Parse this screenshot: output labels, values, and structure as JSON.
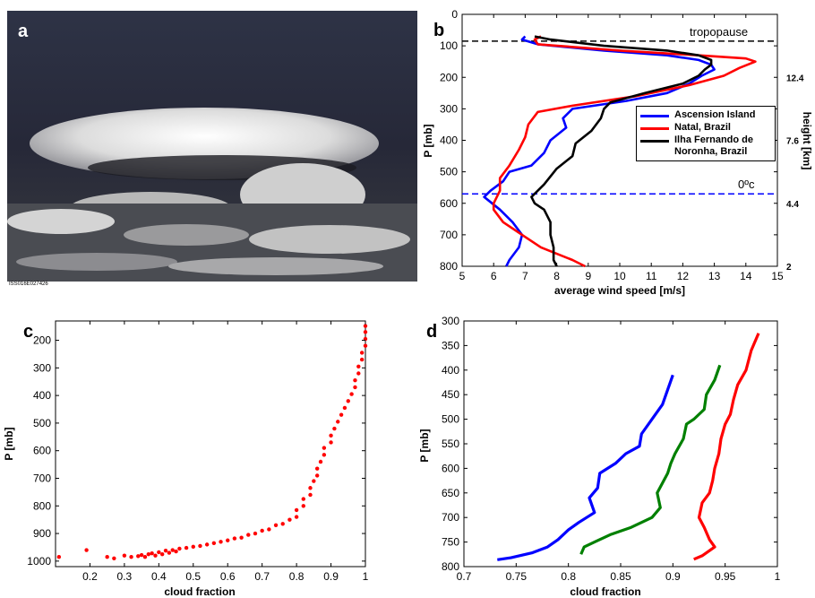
{
  "panels": {
    "a": {
      "letter": "a",
      "caption": "ISS016E027426"
    },
    "b": {
      "letter": "b"
    },
    "c": {
      "letter": "c"
    },
    "d": {
      "letter": "d"
    }
  },
  "annotations": {
    "tropopause": "tropopause",
    "freezing": "0ºc"
  },
  "colors": {
    "blue": "#0000ff",
    "red": "#ff0000",
    "black": "#000000",
    "green": "#008000"
  },
  "chart_data": [
    {
      "id": "b",
      "type": "line",
      "xlabel": "average wind speed [m/s]",
      "ylabel": "P [mb]",
      "y2label": "height [km]",
      "xlim": [
        5,
        15
      ],
      "ylim": [
        800,
        0
      ],
      "xticks": [
        5,
        6,
        7,
        8,
        9,
        10,
        11,
        12,
        13,
        14,
        15
      ],
      "yticks": [
        0,
        100,
        200,
        300,
        400,
        500,
        600,
        700,
        800
      ],
      "y2ticks": [
        {
          "label": "12.4",
          "p": 200
        },
        {
          "label": "7.6",
          "p": 400
        },
        {
          "label": "4.4",
          "p": 600
        },
        {
          "label": "2",
          "p": 800
        }
      ],
      "hlines": [
        {
          "p": 85,
          "color": "#000000",
          "label": "tropopause"
        },
        {
          "p": 570,
          "color": "#0000ff",
          "label": "0ºc"
        }
      ],
      "legend": "center-right",
      "series": [
        {
          "name": "Ascension Island",
          "color": "#0000ff",
          "points": [
            [
              7.0,
              70
            ],
            [
              6.9,
              80
            ],
            [
              7.4,
              95
            ],
            [
              9.5,
              115
            ],
            [
              11.5,
              130
            ],
            [
              12.5,
              145
            ],
            [
              12.9,
              160
            ],
            [
              13.0,
              175
            ],
            [
              12.6,
              195
            ],
            [
              12.2,
              220
            ],
            [
              11.5,
              250
            ],
            [
              10.2,
              275
            ],
            [
              8.5,
              300
            ],
            [
              8.2,
              330
            ],
            [
              8.3,
              360
            ],
            [
              7.8,
              400
            ],
            [
              7.6,
              440
            ],
            [
              7.2,
              480
            ],
            [
              6.5,
              500
            ],
            [
              6.3,
              530
            ],
            [
              5.9,
              560
            ],
            [
              5.7,
              580
            ],
            [
              6.2,
              620
            ],
            [
              6.6,
              660
            ],
            [
              6.9,
              700
            ],
            [
              6.8,
              740
            ],
            [
              6.5,
              780
            ],
            [
              6.4,
              800
            ]
          ]
        },
        {
          "name": "Natal, Brazil",
          "color": "#ff0000",
          "points": [
            [
              7.5,
              70
            ],
            [
              7.3,
              80
            ],
            [
              7.4,
              95
            ],
            [
              10.0,
              115
            ],
            [
              12.5,
              130
            ],
            [
              14.0,
              140
            ],
            [
              14.3,
              150
            ],
            [
              13.8,
              170
            ],
            [
              13.3,
              195
            ],
            [
              12.2,
              225
            ],
            [
              10.5,
              260
            ],
            [
              8.5,
              290
            ],
            [
              7.4,
              310
            ],
            [
              7.1,
              350
            ],
            [
              7.0,
              390
            ],
            [
              6.8,
              430
            ],
            [
              6.5,
              480
            ],
            [
              6.2,
              520
            ],
            [
              6.2,
              560
            ],
            [
              6.0,
              600
            ],
            [
              6.0,
              620
            ],
            [
              6.3,
              660
            ],
            [
              6.9,
              700
            ],
            [
              7.5,
              740
            ],
            [
              8.5,
              780
            ],
            [
              8.9,
              800
            ]
          ]
        },
        {
          "name": "Ilha Fernando de Noronha, Brazil",
          "color": "#000000",
          "points": [
            [
              7.3,
              70
            ],
            [
              7.8,
              80
            ],
            [
              9.5,
              100
            ],
            [
              11.5,
              115
            ],
            [
              12.5,
              130
            ],
            [
              12.9,
              145
            ],
            [
              12.9,
              160
            ],
            [
              12.7,
              175
            ],
            [
              12.5,
              195
            ],
            [
              12.0,
              220
            ],
            [
              10.8,
              250
            ],
            [
              9.7,
              280
            ],
            [
              9.5,
              300
            ],
            [
              9.4,
              330
            ],
            [
              9.1,
              370
            ],
            [
              8.6,
              410
            ],
            [
              8.5,
              450
            ],
            [
              8.0,
              490
            ],
            [
              7.6,
              540
            ],
            [
              7.2,
              580
            ],
            [
              7.3,
              600
            ],
            [
              7.6,
              620
            ],
            [
              7.8,
              660
            ],
            [
              7.8,
              700
            ],
            [
              7.9,
              740
            ],
            [
              7.9,
              780
            ],
            [
              8.0,
              800
            ]
          ]
        }
      ]
    },
    {
      "id": "c",
      "type": "scatter",
      "xlabel": "cloud fraction",
      "ylabel": "P [mb]",
      "xlim": [
        0.1,
        1.0
      ],
      "ylim": [
        1020,
        130
      ],
      "xticks": [
        0.2,
        0.3,
        0.4,
        0.5,
        0.6,
        0.7,
        0.8,
        0.9,
        1
      ],
      "yticks": [
        200,
        300,
        400,
        500,
        600,
        700,
        800,
        900,
        1000
      ],
      "color": "#ff0000",
      "series": [
        {
          "name": "",
          "color": "#ff0000",
          "points": [
            [
              0.11,
              985
            ],
            [
              0.19,
              960
            ],
            [
              0.25,
              985
            ],
            [
              0.27,
              990
            ],
            [
              0.3,
              980
            ],
            [
              0.32,
              985
            ],
            [
              0.34,
              982
            ],
            [
              0.35,
              978
            ],
            [
              0.36,
              985
            ],
            [
              0.37,
              975
            ],
            [
              0.38,
              972
            ],
            [
              0.39,
              980
            ],
            [
              0.4,
              968
            ],
            [
              0.41,
              975
            ],
            [
              0.42,
              962
            ],
            [
              0.43,
              970
            ],
            [
              0.44,
              960
            ],
            [
              0.45,
              965
            ],
            [
              0.46,
              955
            ],
            [
              0.48,
              952
            ],
            [
              0.5,
              948
            ],
            [
              0.52,
              945
            ],
            [
              0.54,
              940
            ],
            [
              0.56,
              935
            ],
            [
              0.58,
              930
            ],
            [
              0.6,
              925
            ],
            [
              0.62,
              918
            ],
            [
              0.64,
              915
            ],
            [
              0.66,
              905
            ],
            [
              0.68,
              900
            ],
            [
              0.7,
              890
            ],
            [
              0.72,
              885
            ],
            [
              0.74,
              870
            ],
            [
              0.76,
              865
            ],
            [
              0.78,
              850
            ],
            [
              0.8,
              840
            ],
            [
              0.8,
              815
            ],
            [
              0.82,
              800
            ],
            [
              0.82,
              775
            ],
            [
              0.84,
              760
            ],
            [
              0.84,
              735
            ],
            [
              0.85,
              710
            ],
            [
              0.86,
              690
            ],
            [
              0.86,
              665
            ],
            [
              0.87,
              640
            ],
            [
              0.88,
              615
            ],
            [
              0.88,
              590
            ],
            [
              0.9,
              570
            ],
            [
              0.9,
              545
            ],
            [
              0.91,
              520
            ],
            [
              0.92,
              495
            ],
            [
              0.93,
              470
            ],
            [
              0.94,
              445
            ],
            [
              0.95,
              420
            ],
            [
              0.96,
              395
            ],
            [
              0.97,
              370
            ],
            [
              0.97,
              345
            ],
            [
              0.98,
              320
            ],
            [
              0.98,
              295
            ],
            [
              0.99,
              270
            ],
            [
              0.99,
              245
            ],
            [
              1.0,
              220
            ],
            [
              1.0,
              195
            ],
            [
              1.0,
              170
            ],
            [
              1.0,
              148
            ]
          ]
        }
      ]
    },
    {
      "id": "d",
      "type": "line",
      "xlabel": "cloud fraction",
      "ylabel": "P [mb]",
      "xlim": [
        0.7,
        1.0
      ],
      "ylim": [
        800,
        300
      ],
      "xticks": [
        0.7,
        0.75,
        0.8,
        0.85,
        0.9,
        0.95,
        1
      ],
      "yticks": [
        300,
        350,
        400,
        450,
        500,
        550,
        600,
        650,
        700,
        750,
        800
      ],
      "series": [
        {
          "name": "",
          "color": "#0000ff",
          "points": [
            [
              0.9,
              410
            ],
            [
              0.895,
              440
            ],
            [
              0.89,
              470
            ],
            [
              0.88,
              500
            ],
            [
              0.87,
              530
            ],
            [
              0.868,
              555
            ],
            [
              0.855,
              570
            ],
            [
              0.845,
              590
            ],
            [
              0.83,
              610
            ],
            [
              0.828,
              640
            ],
            [
              0.82,
              660
            ],
            [
              0.825,
              690
            ],
            [
              0.81,
              710
            ],
            [
              0.8,
              725
            ],
            [
              0.79,
              745
            ],
            [
              0.78,
              760
            ],
            [
              0.765,
              772
            ],
            [
              0.745,
              782
            ],
            [
              0.732,
              786
            ]
          ]
        },
        {
          "name": "",
          "color": "#008000",
          "points": [
            [
              0.945,
              390
            ],
            [
              0.94,
              420
            ],
            [
              0.932,
              450
            ],
            [
              0.93,
              480
            ],
            [
              0.92,
              500
            ],
            [
              0.913,
              510
            ],
            [
              0.91,
              540
            ],
            [
              0.902,
              570
            ],
            [
              0.898,
              590
            ],
            [
              0.895,
              610
            ],
            [
              0.89,
              630
            ],
            [
              0.885,
              650
            ],
            [
              0.888,
              680
            ],
            [
              0.88,
              700
            ],
            [
              0.86,
              720
            ],
            [
              0.84,
              735
            ],
            [
              0.825,
              750
            ],
            [
              0.815,
              760
            ],
            [
              0.812,
              775
            ]
          ]
        },
        {
          "name": "",
          "color": "#ff0000",
          "points": [
            [
              0.982,
              325
            ],
            [
              0.975,
              360
            ],
            [
              0.97,
              400
            ],
            [
              0.962,
              430
            ],
            [
              0.958,
              460
            ],
            [
              0.955,
              490
            ],
            [
              0.95,
              510
            ],
            [
              0.946,
              540
            ],
            [
              0.944,
              570
            ],
            [
              0.94,
              600
            ],
            [
              0.938,
              625
            ],
            [
              0.935,
              650
            ],
            [
              0.928,
              670
            ],
            [
              0.925,
              700
            ],
            [
              0.93,
              720
            ],
            [
              0.935,
              745
            ],
            [
              0.94,
              760
            ],
            [
              0.928,
              778
            ],
            [
              0.92,
              785
            ]
          ]
        }
      ]
    }
  ]
}
